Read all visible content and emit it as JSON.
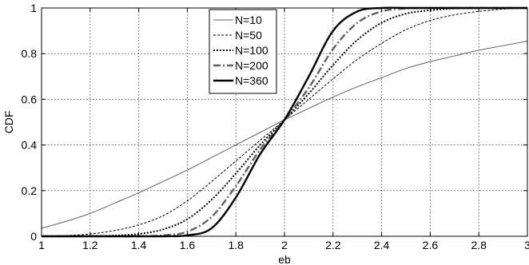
{
  "chart_data": {
    "type": "line",
    "xlabel": "eb",
    "ylabel": "CDF",
    "xlim": [
      1,
      3
    ],
    "ylim": [
      0,
      1
    ],
    "xticks": [
      1,
      1.2,
      1.4,
      1.6,
      1.8,
      2,
      2.2,
      2.4,
      2.6,
      2.8,
      3
    ],
    "xtick_labels": [
      "1",
      "1.2",
      "1.4",
      "1.6",
      "1.8",
      "2",
      "2.2",
      "2.4",
      "2.6",
      "2.8",
      "3"
    ],
    "yticks": [
      0,
      0.2,
      0.4,
      0.6,
      0.8,
      1
    ],
    "ytick_labels": [
      "0",
      "0.2",
      "0.4",
      "0.6",
      "0.8",
      "1"
    ],
    "grid": true,
    "legend_position": "top-center",
    "x": [
      1.0,
      1.1,
      1.2,
      1.3,
      1.4,
      1.5,
      1.6,
      1.7,
      1.8,
      1.9,
      2.0,
      2.1,
      2.2,
      2.3,
      2.4,
      2.5,
      2.6,
      2.7,
      2.8,
      2.9,
      3.0
    ],
    "series": [
      {
        "name": "N=10",
        "style": "solid-thin",
        "color": "#606060",
        "values": [
          0.035,
          0.065,
          0.1,
          0.145,
          0.19,
          0.24,
          0.29,
          0.345,
          0.4,
          0.455,
          0.51,
          0.56,
          0.61,
          0.655,
          0.695,
          0.735,
          0.765,
          0.79,
          0.815,
          0.835,
          0.855
        ]
      },
      {
        "name": "N=50",
        "style": "dashed-fine",
        "color": "#000000",
        "values": [
          0.0,
          0.003,
          0.01,
          0.025,
          0.05,
          0.09,
          0.155,
          0.24,
          0.33,
          0.42,
          0.51,
          0.6,
          0.69,
          0.775,
          0.845,
          0.905,
          0.945,
          0.97,
          0.985,
          0.995,
          1.0
        ]
      },
      {
        "name": "N=100",
        "style": "dotted",
        "color": "#000000",
        "values": [
          0.0,
          0.0,
          0.001,
          0.003,
          0.01,
          0.03,
          0.075,
          0.16,
          0.275,
          0.4,
          0.51,
          0.625,
          0.75,
          0.86,
          0.935,
          0.975,
          0.99,
          0.998,
          1.0,
          1.0,
          1.0
        ]
      },
      {
        "name": "N=200",
        "style": "dashdot",
        "color": "#606060",
        "values": [
          0.0,
          0.0,
          0.0,
          0.0,
          0.0,
          0.004,
          0.02,
          0.085,
          0.22,
          0.38,
          0.51,
          0.65,
          0.82,
          0.935,
          0.985,
          0.998,
          1.0,
          1.0,
          1.0,
          1.0,
          1.0
        ]
      },
      {
        "name": "N=360",
        "style": "solid-thick",
        "color": "#000000",
        "values": [
          0.0,
          0.0,
          0.0,
          0.0,
          0.0,
          0.0,
          0.004,
          0.035,
          0.17,
          0.36,
          0.51,
          0.7,
          0.9,
          0.985,
          1.0,
          1.0,
          1.0,
          1.0,
          1.0,
          1.0,
          1.0
        ]
      }
    ]
  }
}
